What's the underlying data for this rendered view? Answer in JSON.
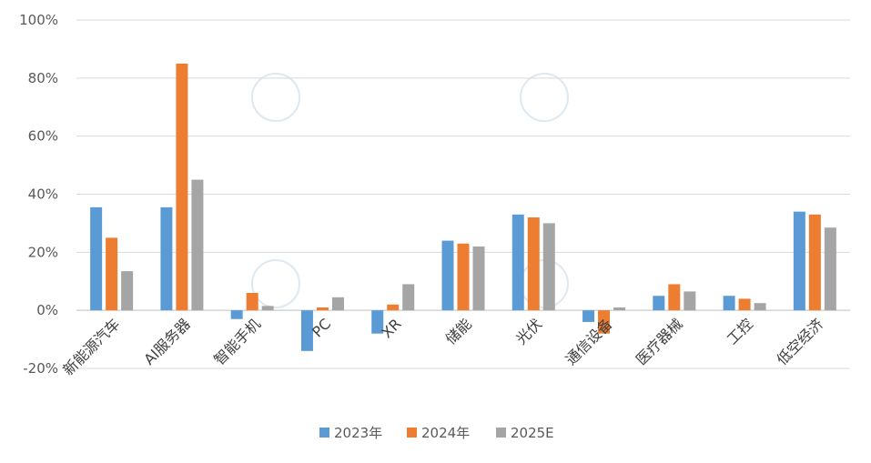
{
  "chart_data": {
    "type": "bar",
    "categories": [
      "新能源汽车",
      "AI服务器",
      "智能手机",
      "PC",
      "XR",
      "储能",
      "光伏",
      "通信设备",
      "医疗器械",
      "工控",
      "低空经济"
    ],
    "series": [
      {
        "name": "2023年",
        "color": "#5b9bd5",
        "values": [
          35.5,
          35.5,
          -3,
          -14,
          -8,
          24,
          33,
          -4,
          5,
          5,
          34
        ]
      },
      {
        "name": "2024年",
        "color": "#ed7d31",
        "values": [
          25,
          85,
          6,
          1,
          2,
          23,
          32,
          -8,
          9,
          4,
          33
        ]
      },
      {
        "name": "2025E",
        "color": "#a5a5a5",
        "values": [
          13.5,
          45,
          1.5,
          4.5,
          9,
          22,
          30,
          1,
          6.5,
          2.5,
          28.5
        ]
      }
    ],
    "yticks": [
      "-20%",
      "0%",
      "20%",
      "40%",
      "60%",
      "80%",
      "100%"
    ],
    "ylim": [
      -20,
      100
    ],
    "grid": true,
    "legend_position": "bottom"
  }
}
